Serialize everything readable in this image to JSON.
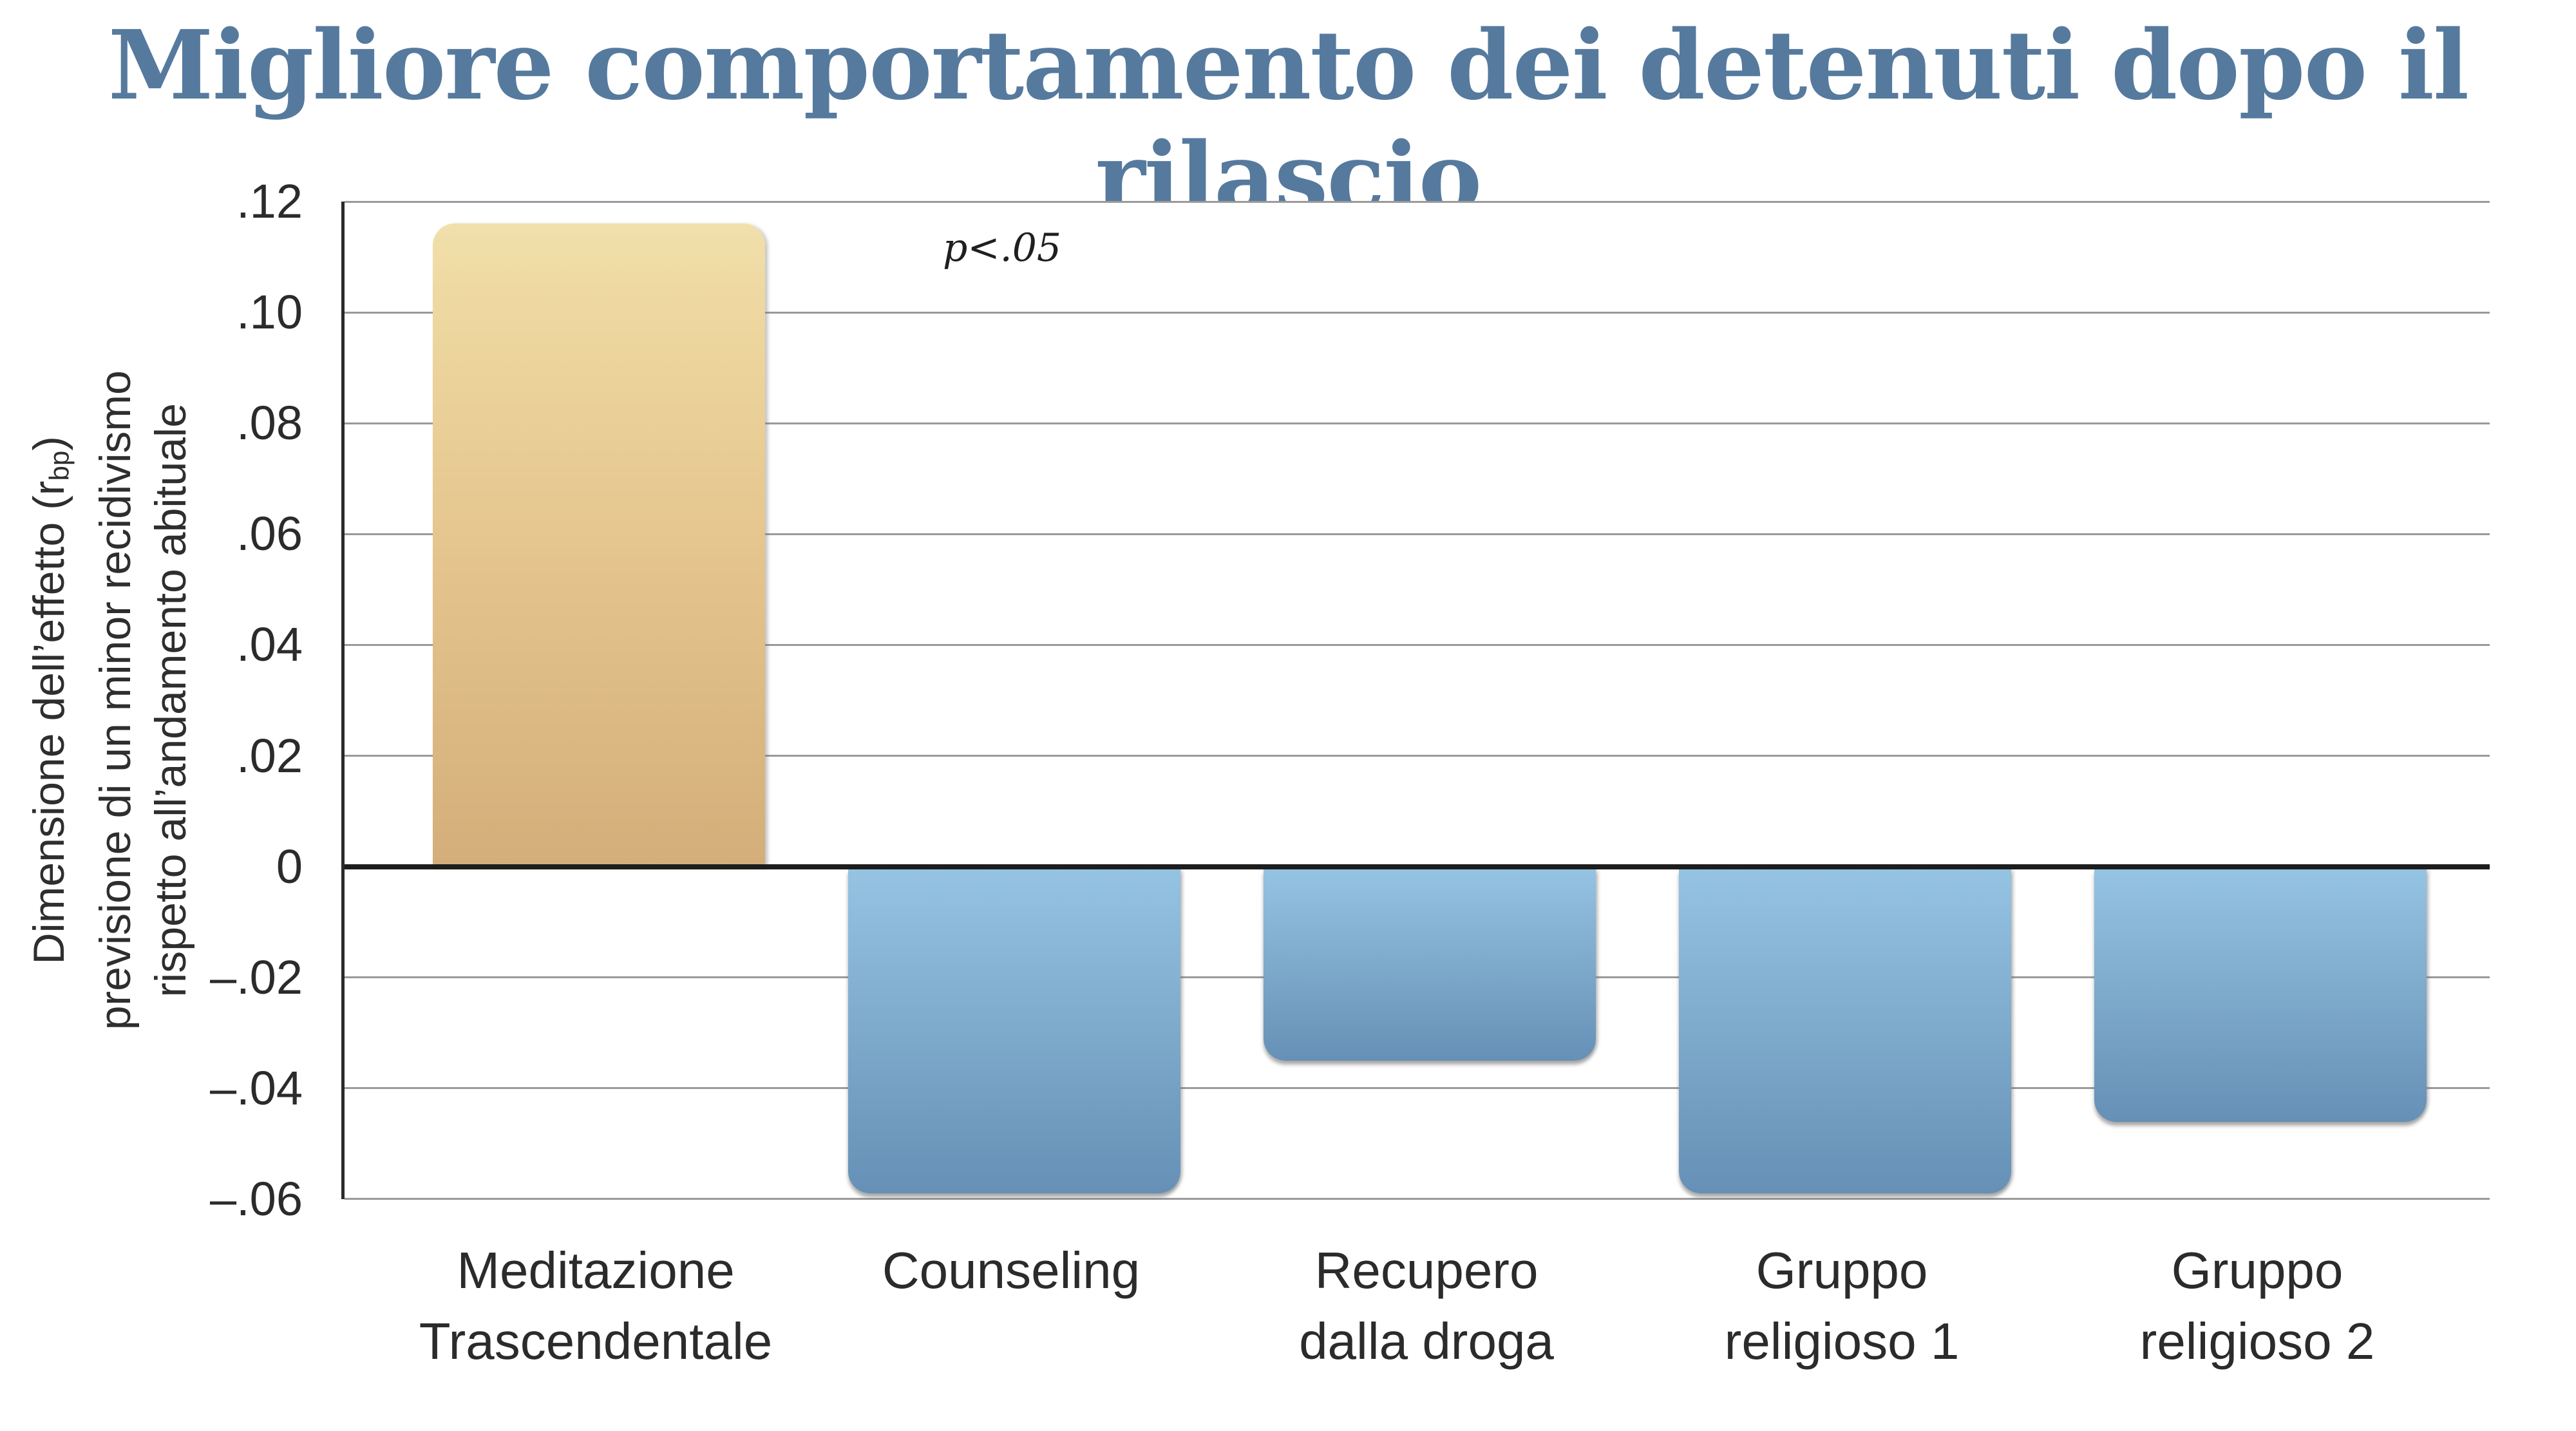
{
  "chart_data": {
    "type": "bar",
    "title": "Migliore comportamento dei detenuti dopo il rilascio",
    "annotation": "p<.05",
    "ylabel": {
      "line1_pre": "Dimensione dell’effetto (r",
      "line1_sub": "bp",
      "line1_post": ")",
      "line2": "previsione di un minor recidivismo",
      "line3": "rispetto all’andamento abituale"
    },
    "xlabel": "",
    "yticks": [
      ".12",
      ".10",
      ".08",
      ".06",
      ".04",
      ".02",
      "0",
      "–.02",
      "–.04",
      "–.06"
    ],
    "ylim": [
      -0.06,
      0.12
    ],
    "ytick_step": 0.02,
    "grid": true,
    "legend": "none",
    "categories": [
      {
        "lines": [
          "Meditazione",
          "Trascendentale"
        ],
        "value": 0.116,
        "color": "gold"
      },
      {
        "lines": [
          "Counseling"
        ],
        "value": -0.059,
        "color": "blue"
      },
      {
        "lines": [
          "Recupero",
          "dalla droga"
        ],
        "value": -0.035,
        "color": "blue"
      },
      {
        "lines": [
          "Gruppo",
          "religioso 1"
        ],
        "value": -0.059,
        "color": "blue"
      },
      {
        "lines": [
          "Gruppo",
          "religioso 2"
        ],
        "value": -0.046,
        "color": "blue"
      }
    ],
    "colors": {
      "title": "#567a9e",
      "bar_gold_top": "#efd9a2",
      "bar_gold_bottom": "#d4ae7a",
      "bar_blue_top": "#95c3e2",
      "bar_blue_bottom": "#6690b6",
      "gridline": "#9a9a9a",
      "zero_line": "#1d1d1d",
      "axis_line": "#2b2b2b",
      "text": "#2b2b2b"
    }
  }
}
